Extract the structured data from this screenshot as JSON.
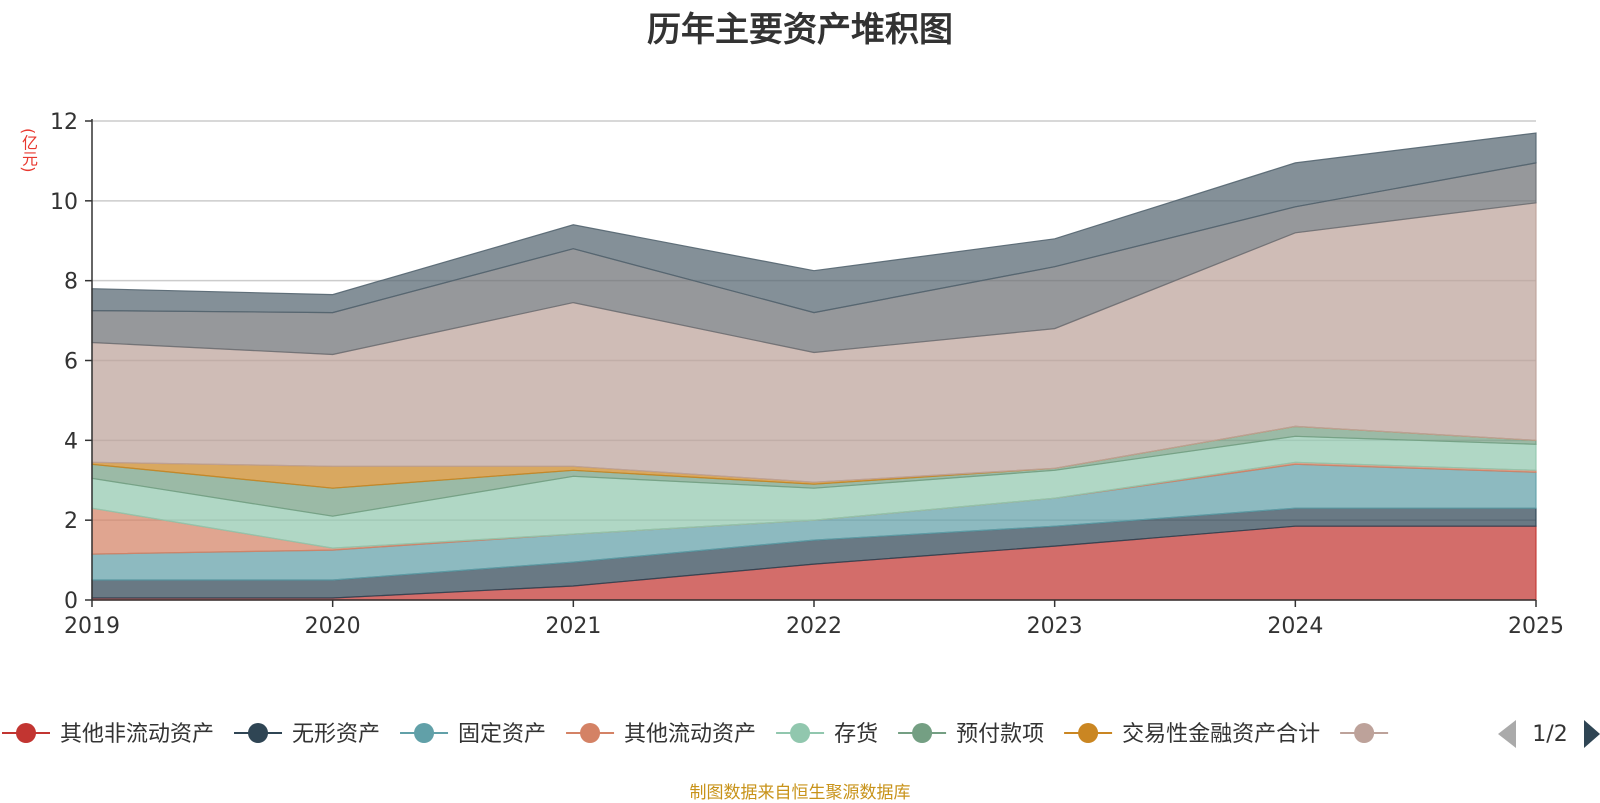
{
  "chart_data": {
    "type": "area",
    "stacked": true,
    "title": "历年主要资产堆积图",
    "ylabel": "(亿元)",
    "ylim": [
      0,
      12
    ],
    "yticks": [
      0,
      2,
      4,
      6,
      8,
      10,
      12
    ],
    "categories": [
      "2019",
      "2020",
      "2021",
      "2022",
      "2023",
      "2024",
      "2025"
    ],
    "series": [
      {
        "name": "其他非流动资产",
        "color": "#c23531",
        "values": [
          0.05,
          0.05,
          0.35,
          0.9,
          1.35,
          1.85,
          1.85
        ]
      },
      {
        "name": "无形资产",
        "color": "#2f4554",
        "values": [
          0.45,
          0.45,
          0.6,
          0.6,
          0.5,
          0.45,
          0.45
        ]
      },
      {
        "name": "固定资产",
        "color": "#61a0a8",
        "values": [
          0.65,
          0.75,
          0.7,
          0.5,
          0.7,
          1.1,
          0.9
        ]
      },
      {
        "name": "其他流动资产",
        "color": "#d48265",
        "values": [
          1.15,
          0.05,
          0.0,
          0.0,
          0.0,
          0.05,
          0.05
        ]
      },
      {
        "name": "存货",
        "color": "#91c7ae",
        "values": [
          0.75,
          0.8,
          1.45,
          0.8,
          0.7,
          0.65,
          0.65
        ]
      },
      {
        "name": "预付款项",
        "color": "#749f83",
        "values": [
          0.35,
          0.7,
          0.15,
          0.1,
          0.05,
          0.25,
          0.1
        ]
      },
      {
        "name": "交易性金融资产合计",
        "color": "#ca8622",
        "values": [
          0.05,
          0.55,
          0.1,
          0.05,
          0.0,
          0.0,
          0.0
        ]
      },
      {
        "name": "",
        "color": "#bda29a",
        "values": [
          3.0,
          2.8,
          4.1,
          3.25,
          3.5,
          4.85,
          5.95
        ]
      },
      {
        "name": "",
        "color": "#6e7074",
        "values": [
          0.8,
          1.05,
          1.35,
          1.0,
          1.55,
          0.65,
          1.0
        ]
      },
      {
        "name": "",
        "color": "#546570",
        "values": [
          0.55,
          0.45,
          0.6,
          1.05,
          0.7,
          1.1,
          0.75
        ]
      }
    ],
    "legend_page": "1/2"
  },
  "source_note": "制图数据来自恒生聚源数据库"
}
